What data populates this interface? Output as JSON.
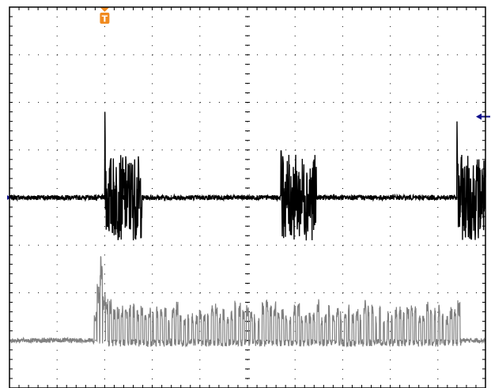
{
  "chart_data": {
    "type": "line",
    "title": "",
    "xlabel": "",
    "ylabel": "",
    "grid": true,
    "divisions": {
      "horizontal": 10,
      "vertical": 8
    },
    "subdivisions_per_division": 5,
    "xlim": [
      0,
      10
    ],
    "ylim": [
      -4,
      4
    ],
    "colors": {
      "background": "#ffffff",
      "frame": "#000000",
      "grid": "#000000",
      "channel1": "#000000",
      "channel2": "#808080",
      "trigger_marker": "#f08a1e",
      "level_marker": "#10108c"
    },
    "markers": {
      "trigger": {
        "label": "T",
        "x_div": 2.0,
        "icon": "trigger-marker-icon"
      },
      "trigger_level": {
        "y_div": 1.7,
        "side": "right",
        "icon": "arrow-left-icon"
      },
      "ch1_ground": {
        "y_div": 0.0,
        "side": "left",
        "icon": "arrow-right-icon"
      }
    },
    "series": [
      {
        "id": "ch1",
        "baseline_div": 0.0,
        "noise_amplitude_div": 0.05,
        "bursts": [
          {
            "start_div": 2.0,
            "end_div": 2.78,
            "amplitude_div": 0.9,
            "spike_div": 1.8
          },
          {
            "start_div": 5.7,
            "end_div": 6.45,
            "amplitude_div": 0.9,
            "spike_div": 1.4
          },
          {
            "start_div": 9.4,
            "end_div": 10.0,
            "amplitude_div": 0.9,
            "spike_div": 1.6
          }
        ]
      },
      {
        "id": "ch2",
        "baseline_div": -3.0,
        "noise_amplitude_div": 0.05,
        "pulse_train": {
          "start_div": 1.75,
          "end_div": 9.5,
          "initial_peaks_div": [
            0.6,
            1.2,
            1.8,
            1.0,
            0.9
          ],
          "typical_peak_div": [
            0.5,
            0.9
          ],
          "pulse_count": 90
        }
      }
    ]
  }
}
